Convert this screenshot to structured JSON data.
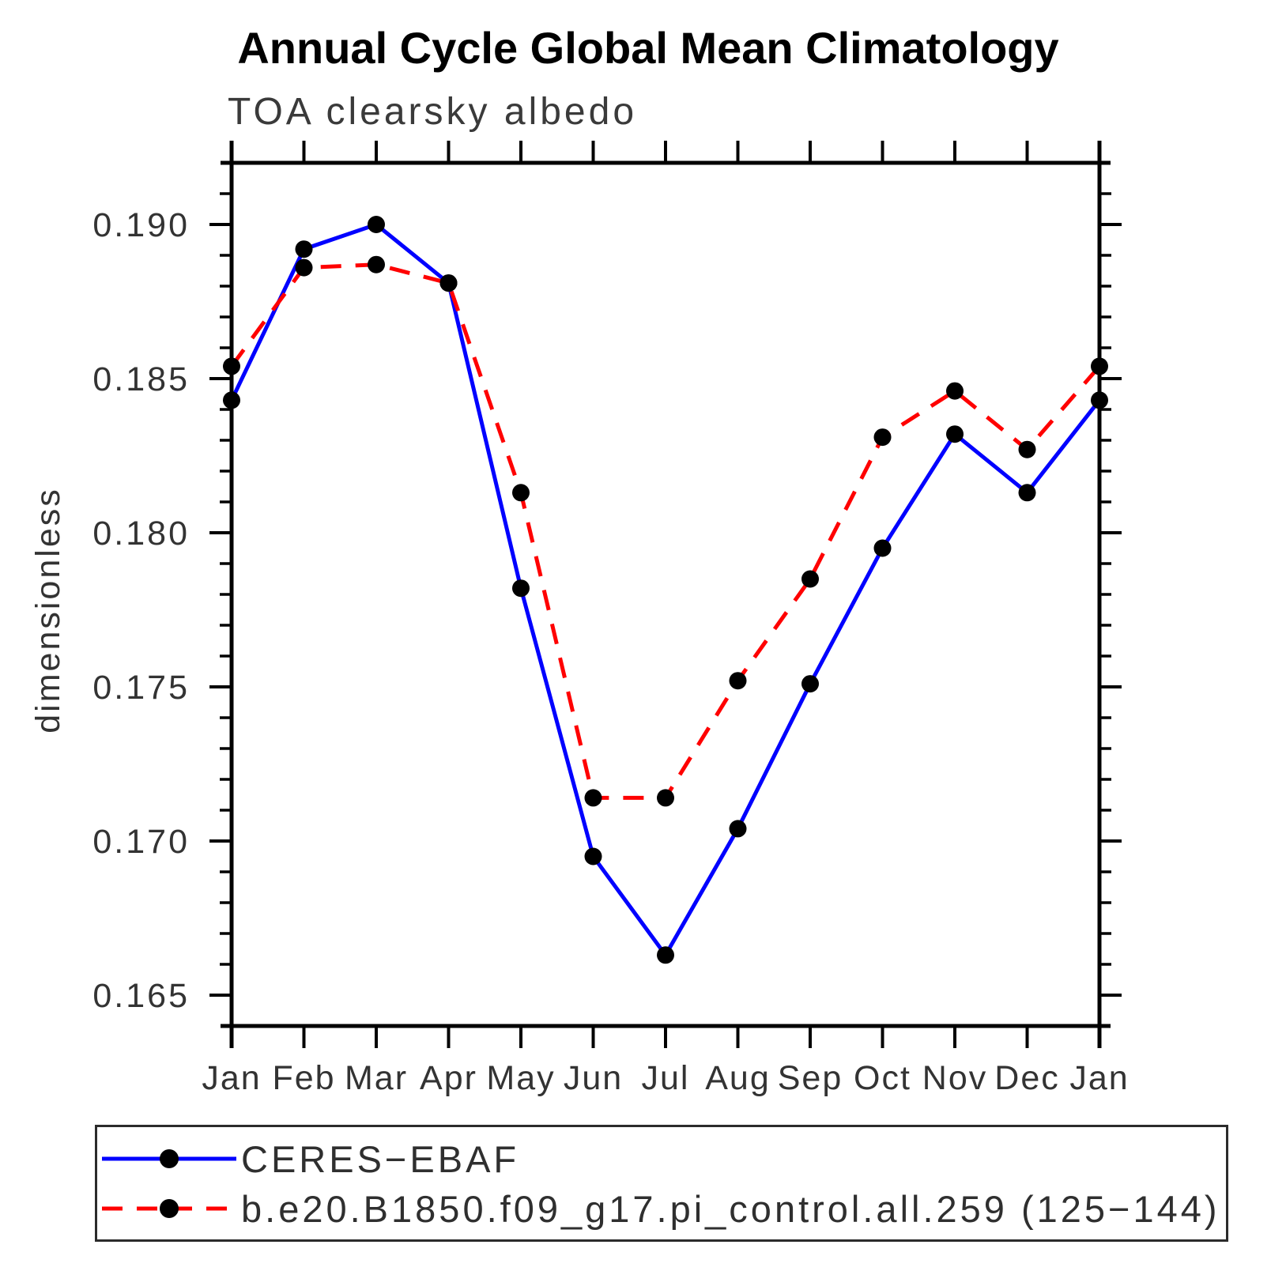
{
  "header": {
    "title": "Annual Cycle Global Mean Climatology",
    "subtitle": "TOA clearsky albedo"
  },
  "chart_data": {
    "type": "line",
    "title": "Annual Cycle Global Mean Climatology",
    "subtitle": "TOA clearsky albedo",
    "xlabel": "",
    "ylabel": "dimensionless",
    "categories": [
      "Jan",
      "Feb",
      "Mar",
      "Apr",
      "May",
      "Jun",
      "Jul",
      "Aug",
      "Sep",
      "Oct",
      "Nov",
      "Dec",
      "Jan"
    ],
    "series": [
      {
        "name": "CERES−EBAF",
        "color": "#0000ff",
        "line_style": "solid",
        "marker": "circle",
        "marker_color": "#000000",
        "values": [
          0.1843,
          0.1892,
          0.19,
          0.1881,
          0.1782,
          0.1695,
          0.1663,
          0.1704,
          0.1751,
          0.1795,
          0.1832,
          0.1813,
          0.1843
        ]
      },
      {
        "name": "b.e20.B1850.f09_g17.pi_control.all.259 (125−144)",
        "color": "#ff0000",
        "line_style": "dashed",
        "marker": "circle",
        "marker_color": "#000000",
        "values": [
          0.1854,
          0.1886,
          0.1887,
          0.1881,
          0.1813,
          0.1714,
          0.1714,
          0.1752,
          0.1785,
          0.1831,
          0.1846,
          0.1827,
          0.1854
        ]
      }
    ],
    "ylim": [
      0.164,
      0.192
    ],
    "yticks_major": [
      0.165,
      0.17,
      0.175,
      0.18,
      0.185,
      0.19
    ],
    "ytick_labels": [
      "0.165",
      "0.170",
      "0.175",
      "0.180",
      "0.185",
      "0.190"
    ],
    "ytick_minor_step": 0.001,
    "grid": false,
    "legend_position": "bottom-left"
  },
  "colors": {
    "axis": "#000000",
    "tick_text": "#333333",
    "series1": "#0000ff",
    "series2": "#ff0000",
    "marker": "#000000"
  }
}
